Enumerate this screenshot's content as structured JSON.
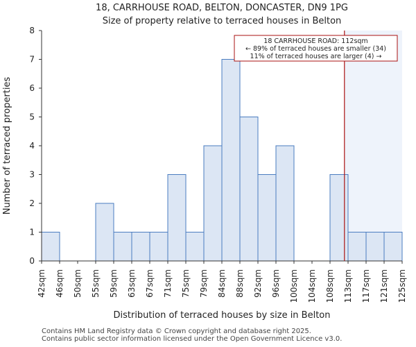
{
  "title_lines": [
    "18, CARRHOUSE ROAD, BELTON, DONCASTER, DN9 1PG",
    "Size of property relative to terraced houses in Belton"
  ],
  "footer_lines": [
    "Contains HM Land Registry data © Crown copyright and database right 2025.",
    "Contains public sector information licensed under the Open Government Licence v3.0."
  ],
  "colors": {
    "bar_fill": "#dce6f4",
    "bar_edge": "#4a7cc0",
    "highlight_bg": "#eef3fb",
    "marker_line": "#aa1111",
    "annotation_border": "#aa1111",
    "axis": "#333333"
  },
  "chart_data": {
    "type": "bar",
    "title": "Size of property relative to terraced houses in Belton",
    "xlabel": "Distribution of terraced houses by size in Belton",
    "ylabel": "Number of terraced properties",
    "ylim": [
      0,
      8
    ],
    "yticks": [
      0,
      1,
      2,
      3,
      4,
      5,
      6,
      7,
      8
    ],
    "grid": false,
    "bin_edges": [
      42,
      46,
      50,
      55,
      59,
      63,
      67,
      71,
      75,
      79,
      84,
      88,
      92,
      96,
      100,
      104,
      108,
      113,
      117,
      121,
      125
    ],
    "tick_labels": [
      "42sqm",
      "46sqm",
      "50sqm",
      "55sqm",
      "59sqm",
      "63sqm",
      "67sqm",
      "71sqm",
      "75sqm",
      "79sqm",
      "84sqm",
      "88sqm",
      "92sqm",
      "96sqm",
      "100sqm",
      "104sqm",
      "108sqm",
      "113sqm",
      "117sqm",
      "121sqm",
      "125sqm"
    ],
    "values": [
      1,
      0,
      0,
      2,
      1,
      1,
      1,
      3,
      1,
      4,
      7,
      5,
      3,
      4,
      0,
      0,
      3,
      1,
      1,
      1
    ],
    "marker": {
      "value_sqm": 112,
      "position_in_bins": 16.8,
      "label": "18 CARRHOUSE ROAD: 112sqm"
    },
    "annotation_lines": [
      "18 CARRHOUSE ROAD: 112sqm",
      "← 89% of terraced houses are smaller (34)",
      "11% of terraced houses are larger (4) →"
    ]
  }
}
